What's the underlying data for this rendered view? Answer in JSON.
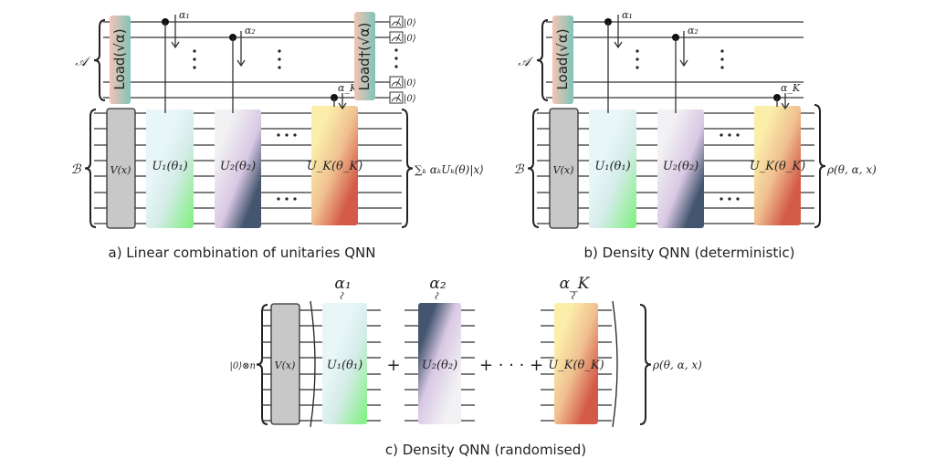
{
  "panel_a": {
    "register_a": "𝒜",
    "register_b": "ℬ",
    "load": "Load(√α)",
    "load_dagger": "Load†(√α)",
    "encoder": "V(x)",
    "unitaries": [
      "U₁(θ₁)",
      "U₂(θ₂)",
      "U_K(θ_K)"
    ],
    "alphas": [
      "α₁",
      "α₂",
      "α_K"
    ],
    "ket_zero": "|0⟩",
    "output": "∑ₖ αₖUₖ(θ)|x⟩",
    "caption": "a) Linear combination of unitaries QNN"
  },
  "panel_b": {
    "register_a": "𝒜",
    "register_b": "ℬ",
    "load": "Load(√α)",
    "encoder": "V(x)",
    "unitaries": [
      "U₁(θ₁)",
      "U₂(θ₂)",
      "U_K(θ_K)"
    ],
    "alphas": [
      "α₁",
      "α₂",
      "α_K"
    ],
    "output": "ρ(θ, α, x)",
    "caption": "b) Density QNN (deterministic)"
  },
  "panel_c": {
    "input": "|0⟩⊗n",
    "encoder": "V(x)",
    "unitaries": [
      "U₁(θ₁)",
      "U₂(θ₂)",
      "U_K(θ_K)"
    ],
    "alphas": [
      "α₁",
      "α₂",
      "α_K"
    ],
    "plus": "+",
    "plus_dots": "+ · · · +",
    "output": "ρ(θ, α, x)",
    "caption": "c) Density QNN (randomised)"
  },
  "colors": {
    "u1": [
      "#e8f6f8",
      "#7cf07c"
    ],
    "u2": [
      "#f2f2f4",
      "#d9c8e4",
      "#44566f"
    ],
    "uk": [
      "#fbeeaa",
      "#d35a48"
    ],
    "load": [
      "#f4c4b4",
      "#7fc4b8"
    ],
    "encoder": "#c8c8c8"
  }
}
